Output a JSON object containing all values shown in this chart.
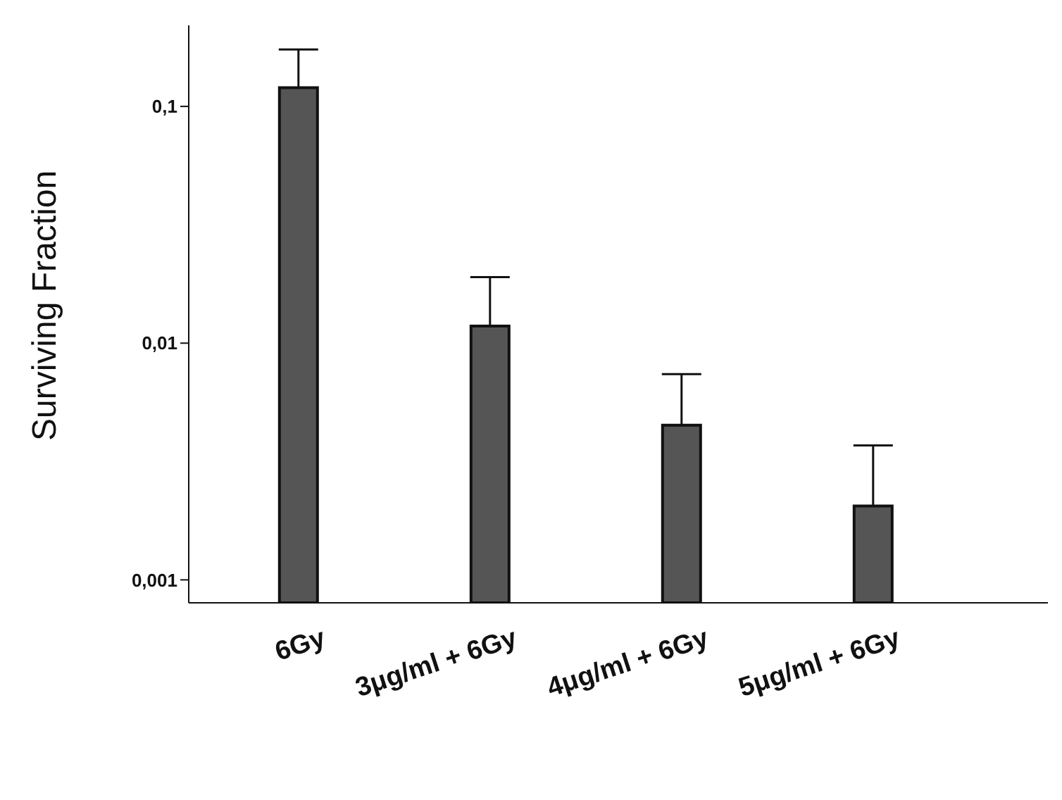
{
  "chart_data": {
    "type": "bar",
    "ylabel": "Surviving Fraction",
    "categories": [
      "6Gy",
      "3μg/ml + 6Gy",
      "4μg/ml + 6Gy",
      "5μg/ml + 6Gy"
    ],
    "values": [
      0.12,
      0.0118,
      0.0045,
      0.00205
    ],
    "errors": [
      [
        0.12,
        0.174
      ],
      [
        0.0118,
        0.019
      ],
      [
        0.0045,
        0.0074
      ],
      [
        0.00205,
        0.0037
      ]
    ],
    "color": "#555555",
    "log": true,
    "ylim": [
      0.0008,
      0.22
    ],
    "yticks": [
      {
        "value": 0.001,
        "label": "0,001"
      },
      {
        "value": 0.01,
        "label": "0,01"
      },
      {
        "value": 0.1,
        "label": "0,1"
      }
    ],
    "grid": false,
    "legend": false
  }
}
